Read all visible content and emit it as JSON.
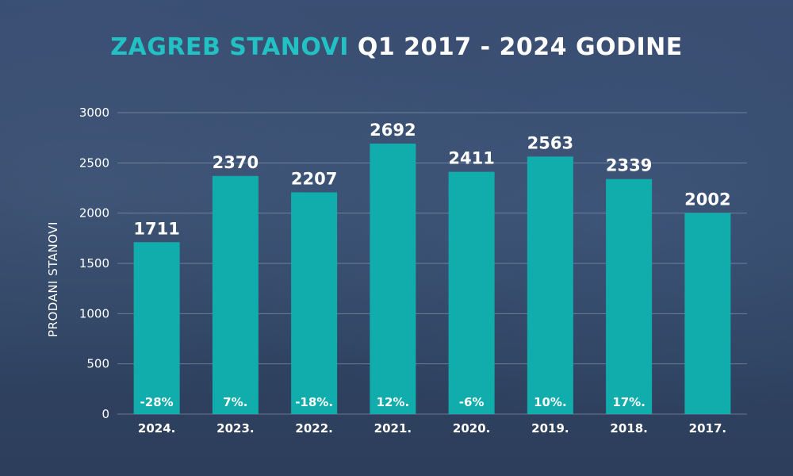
{
  "chart_data": {
    "type": "bar",
    "title_accent": "ZAGREB STANOVI",
    "title_rest": "Q1 2017 - 2024 GODINE",
    "ylabel": "PRODANI STANOVI",
    "xlabel": "",
    "ylim": [
      0,
      3000
    ],
    "yticks": [
      0,
      500,
      1000,
      1500,
      2000,
      2500,
      3000
    ],
    "grid": true,
    "legend": "none",
    "categories": [
      "2024.",
      "2023.",
      "2022.",
      "2021.",
      "2020.",
      "2019.",
      "2018.",
      "2017."
    ],
    "values": [
      1711,
      2370,
      2207,
      2692,
      2411,
      2563,
      2339,
      2002
    ],
    "change_labels": [
      "-28%",
      "7%.",
      "-18%.",
      "12%.",
      "-6%",
      "10%.",
      "17%.",
      ""
    ],
    "colors": {
      "bar": "#11adad",
      "accent": "#22c1c3",
      "grid": "#8fa0b8"
    }
  }
}
